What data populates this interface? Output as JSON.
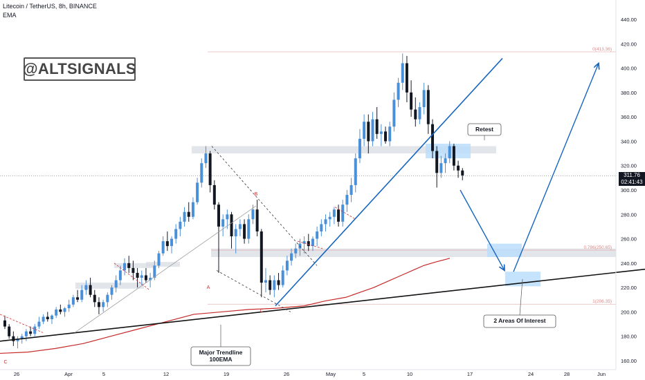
{
  "header": {
    "symbol_line": "Litecoin / TetherUS, 8h, BINANCE",
    "indicator": "EMA"
  },
  "watermark": "@ALTSIGNALS",
  "price_tag": {
    "price": "311.76",
    "countdown": "02:41:43"
  },
  "colors": {
    "up": "#4a90d9",
    "down": "#131722",
    "ema": "#c62828",
    "trend": "#1565c0",
    "zone": "#d8dce3",
    "interest": "#bbdefb"
  },
  "chart_data": {
    "type": "candlestick",
    "title": "Litecoin / TetherUS, 8h, BINANCE",
    "y_axis": {
      "range": [
        155,
        450
      ],
      "ticks": [
        160,
        180,
        200,
        220,
        240,
        260,
        280,
        300,
        320,
        340,
        360,
        380,
        400,
        420,
        440
      ]
    },
    "x_axis": {
      "ticks": [
        "26",
        "Apr",
        "5",
        "12",
        "19",
        "26",
        "May",
        "5",
        "10",
        "17",
        "24",
        "28",
        "Jun"
      ]
    },
    "fib_levels": [
      {
        "label": "0(413.36)",
        "value": 413.36
      },
      {
        "label": "0.786(250.65)",
        "value": 250.65
      },
      {
        "label": "1(206.35)",
        "value": 206.35
      }
    ],
    "wave_labels": [
      {
        "text": "A",
        "color": "#d32f2f"
      },
      {
        "text": "B",
        "color": "#d32f2f"
      },
      {
        "text": "C",
        "color": "#d32f2f"
      },
      {
        "text": "C",
        "color": "#d32f2f"
      }
    ],
    "annotations": [
      {
        "text": "Retest"
      },
      {
        "text": "2 Areas Of Interest"
      },
      {
        "text": "Major Trendline",
        "text2": "100EMA"
      }
    ],
    "ohlc": [
      [
        193,
        197,
        186,
        188
      ],
      [
        188,
        190,
        178,
        180
      ],
      [
        180,
        184,
        172,
        176
      ],
      [
        176,
        180,
        170,
        178
      ],
      [
        178,
        182,
        174,
        180
      ],
      [
        180,
        186,
        176,
        184
      ],
      [
        184,
        188,
        180,
        182
      ],
      [
        182,
        190,
        180,
        188
      ],
      [
        188,
        196,
        186,
        192
      ],
      [
        192,
        198,
        190,
        196
      ],
      [
        196,
        200,
        192,
        194
      ],
      [
        194,
        198,
        190,
        197
      ],
      [
        197,
        204,
        195,
        202
      ],
      [
        202,
        206,
        198,
        200
      ],
      [
        200,
        204,
        196,
        203
      ],
      [
        203,
        210,
        200,
        206
      ],
      [
        206,
        214,
        204,
        212
      ],
      [
        212,
        218,
        208,
        210
      ],
      [
        210,
        222,
        208,
        218
      ],
      [
        218,
        226,
        214,
        222
      ],
      [
        222,
        228,
        212,
        214
      ],
      [
        214,
        218,
        204,
        208
      ],
      [
        208,
        212,
        198,
        204
      ],
      [
        204,
        210,
        200,
        208
      ],
      [
        208,
        216,
        204,
        214
      ],
      [
        214,
        222,
        210,
        220
      ],
      [
        220,
        230,
        216,
        226
      ],
      [
        226,
        238,
        222,
        234
      ],
      [
        234,
        244,
        230,
        240
      ],
      [
        240,
        246,
        232,
        236
      ],
      [
        236,
        242,
        226,
        232
      ],
      [
        232,
        236,
        220,
        228
      ],
      [
        228,
        234,
        222,
        230
      ],
      [
        230,
        236,
        224,
        226
      ],
      [
        226,
        232,
        220,
        228
      ],
      [
        228,
        242,
        226,
        238
      ],
      [
        238,
        250,
        236,
        248
      ],
      [
        248,
        262,
        246,
        258
      ],
      [
        258,
        266,
        250,
        254
      ],
      [
        254,
        262,
        248,
        260
      ],
      [
        260,
        272,
        256,
        268
      ],
      [
        268,
        278,
        262,
        274
      ],
      [
        274,
        286,
        270,
        282
      ],
      [
        282,
        290,
        274,
        278
      ],
      [
        278,
        294,
        276,
        290
      ],
      [
        290,
        310,
        288,
        306
      ],
      [
        306,
        326,
        302,
        322
      ],
      [
        322,
        336,
        318,
        330
      ],
      [
        330,
        332,
        298,
        304
      ],
      [
        304,
        308,
        284,
        288
      ],
      [
        288,
        290,
        232,
        270
      ],
      [
        270,
        280,
        262,
        276
      ],
      [
        276,
        284,
        268,
        280
      ],
      [
        280,
        282,
        252,
        262
      ],
      [
        262,
        272,
        248,
        268
      ],
      [
        268,
        276,
        262,
        272
      ],
      [
        272,
        276,
        256,
        260
      ],
      [
        260,
        280,
        256,
        276
      ],
      [
        276,
        288,
        272,
        284
      ],
      [
        284,
        292,
        262,
        266
      ],
      [
        266,
        268,
        212,
        224
      ],
      [
        224,
        236,
        216,
        226
      ],
      [
        226,
        230,
        214,
        218
      ],
      [
        218,
        230,
        212,
        226
      ],
      [
        226,
        232,
        218,
        222
      ],
      [
        222,
        238,
        220,
        234
      ],
      [
        234,
        246,
        230,
        242
      ],
      [
        242,
        252,
        238,
        248
      ],
      [
        248,
        256,
        244,
        252
      ],
      [
        252,
        260,
        246,
        256
      ],
      [
        256,
        262,
        248,
        258
      ],
      [
        258,
        264,
        250,
        254
      ],
      [
        254,
        262,
        250,
        260
      ],
      [
        260,
        270,
        254,
        266
      ],
      [
        266,
        276,
        262,
        272
      ],
      [
        272,
        280,
        266,
        276
      ],
      [
        276,
        282,
        270,
        278
      ],
      [
        278,
        286,
        272,
        284
      ],
      [
        284,
        288,
        270,
        274
      ],
      [
        274,
        292,
        270,
        288
      ],
      [
        288,
        300,
        282,
        296
      ],
      [
        296,
        310,
        290,
        304
      ],
      [
        304,
        330,
        298,
        326
      ],
      [
        326,
        350,
        322,
        342
      ],
      [
        342,
        362,
        336,
        356
      ],
      [
        356,
        362,
        330,
        340
      ],
      [
        340,
        364,
        336,
        358
      ],
      [
        358,
        368,
        342,
        346
      ],
      [
        346,
        354,
        336,
        348
      ],
      [
        348,
        352,
        338,
        340
      ],
      [
        340,
        356,
        336,
        352
      ],
      [
        352,
        380,
        348,
        374
      ],
      [
        374,
        392,
        368,
        388
      ],
      [
        388,
        412,
        382,
        404
      ],
      [
        404,
        410,
        372,
        380
      ],
      [
        380,
        390,
        360,
        366
      ],
      [
        366,
        376,
        352,
        358
      ],
      [
        358,
        372,
        354,
        368
      ],
      [
        368,
        388,
        362,
        382
      ],
      [
        382,
        386,
        346,
        354
      ],
      [
        354,
        358,
        326,
        332
      ],
      [
        332,
        336,
        302,
        314
      ],
      [
        314,
        328,
        310,
        322
      ],
      [
        322,
        330,
        314,
        326
      ],
      [
        326,
        340,
        322,
        336
      ],
      [
        336,
        338,
        316,
        320
      ],
      [
        320,
        324,
        310,
        316
      ],
      [
        316,
        318,
        308,
        312
      ]
    ]
  }
}
